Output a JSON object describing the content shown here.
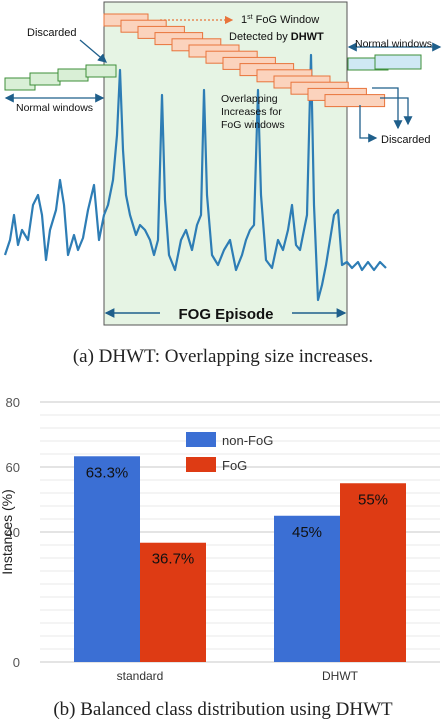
{
  "figure_a": {
    "annotations": {
      "discarded_left": "Discarded",
      "first_window_line1": "1st FoG Window",
      "first_window_sup": "st",
      "first_window_line1_rest": " FoG Window",
      "first_window_line1_num": "1",
      "first_window_line2_prefix": "Detected by ",
      "first_window_line2_bold": "DHWT",
      "normal_windows_right": "Normal windows",
      "normal_windows_left": "Normal windows",
      "overlap_line1": "Overlapping",
      "overlap_line2": "Increases for",
      "overlap_line3": "FoG windows",
      "discarded_right": "Discarded",
      "fog_episode": "FOG Episode"
    },
    "colors": {
      "signal": "#2e7db5",
      "episode_fill": "#e6f4e4",
      "episode_border": "#555555",
      "normal_window_fill": "#d9efd6",
      "normal_window_border": "#3e8f3a",
      "right_window_fill": "#cfe8f4",
      "right_window_border": "#3e8f3a",
      "fog_window_fill": "#fbd3bd",
      "fog_window_border": "#e8743b",
      "arrow": "#1f5f8b",
      "dotted_arrow": "#e8743b"
    }
  },
  "caption_a": "(a)  DHWT: Overlapping size increases.",
  "caption_b": "(b)  Balanced class distribution using DHWT",
  "chart_data": {
    "type": "bar",
    "categories": [
      "standard",
      "DHWT"
    ],
    "series": [
      {
        "name": "non-FoG",
        "values": [
          63.3,
          45
        ],
        "color": "#3b6fd4"
      },
      {
        "name": "FoG",
        "values": [
          36.7,
          55
        ],
        "color": "#de3b14"
      }
    ],
    "data_labels": [
      [
        "63.3%",
        "36.7%"
      ],
      [
        "45%",
        "55%"
      ]
    ],
    "ylabel": "Instances (%)",
    "yticks": [
      0,
      40,
      60,
      80
    ],
    "ylim": [
      0,
      80
    ],
    "grid": true,
    "legend_position": "upper-center"
  }
}
